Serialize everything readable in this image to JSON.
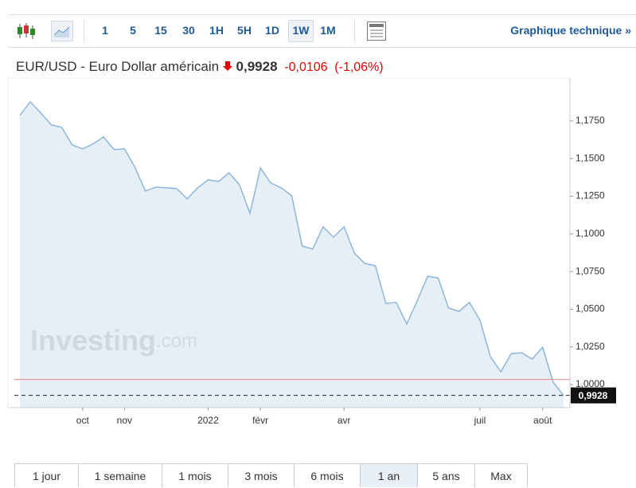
{
  "toolbar": {
    "intervals": [
      "1",
      "5",
      "15",
      "30",
      "1H",
      "5H",
      "1D",
      "1W",
      "1M"
    ],
    "selected": "1W",
    "link": "Graphique technique »"
  },
  "header": {
    "name": "EUR/USD - Euro Dollar américain",
    "price": "0,9928",
    "change": "-0,0106",
    "change_pct": "(-1,06%)"
  },
  "chart_data": {
    "type": "area",
    "categories": [
      null,
      null,
      null,
      null,
      null,
      null,
      "oct",
      null,
      null,
      null,
      "nov",
      null,
      null,
      null,
      null,
      null,
      null,
      null,
      "2022",
      null,
      null,
      null,
      null,
      "févr",
      null,
      null,
      null,
      null,
      null,
      null,
      null,
      "avr",
      null,
      null,
      null,
      null,
      null,
      null,
      null,
      null,
      null,
      null,
      null,
      null,
      "juil",
      null,
      null,
      null,
      null,
      null,
      "août",
      null,
      null
    ],
    "values": [
      1.1787,
      1.1877,
      1.1803,
      1.1724,
      1.1708,
      1.1591,
      1.1565,
      1.1597,
      1.1644,
      1.156,
      1.1565,
      1.1443,
      1.1285,
      1.1311,
      1.1306,
      1.1301,
      1.1232,
      1.1306,
      1.1359,
      1.1348,
      1.1406,
      1.1327,
      1.1137,
      1.1438,
      1.1338,
      1.1306,
      1.1253,
      1.092,
      1.0899,
      1.1047,
      1.0978,
      1.1047,
      1.0872,
      1.0804,
      1.0788,
      1.0539,
      1.0545,
      1.0402,
      1.0555,
      1.0719,
      1.0708,
      1.0508,
      1.0486,
      1.0545,
      1.0428,
      1.0185,
      1.0085,
      1.0206,
      1.0211,
      1.0169,
      1.0248,
      1.0016,
      0.9928
    ],
    "color": "#8cb6da",
    "fill": "#e3ecf5",
    "previous_close": 1.0034,
    "previous_close_color": "#e88a8a",
    "ylim": [
      0.9847,
      1.1961
    ],
    "yticks": [
      {
        "value": 1.0,
        "label": "1,0000"
      },
      {
        "value": 1.025,
        "label": "1,0250"
      },
      {
        "value": 1.05,
        "label": "1,0500"
      },
      {
        "value": 1.075,
        "label": "1,0750"
      },
      {
        "value": 1.1,
        "label": "1,1000"
      },
      {
        "value": 1.125,
        "label": "1,1250"
      },
      {
        "value": 1.15,
        "label": "1,1500"
      },
      {
        "value": 1.175,
        "label": "1,1750"
      }
    ],
    "grid": false,
    "watermark": [
      "Investing",
      ".com"
    ]
  },
  "ranges": {
    "buttons": [
      "1 jour",
      "1 semaine",
      "1 mois",
      "3 mois",
      "6 mois",
      "1 an",
      "5 ans",
      "Max"
    ],
    "selected": "1 an"
  }
}
